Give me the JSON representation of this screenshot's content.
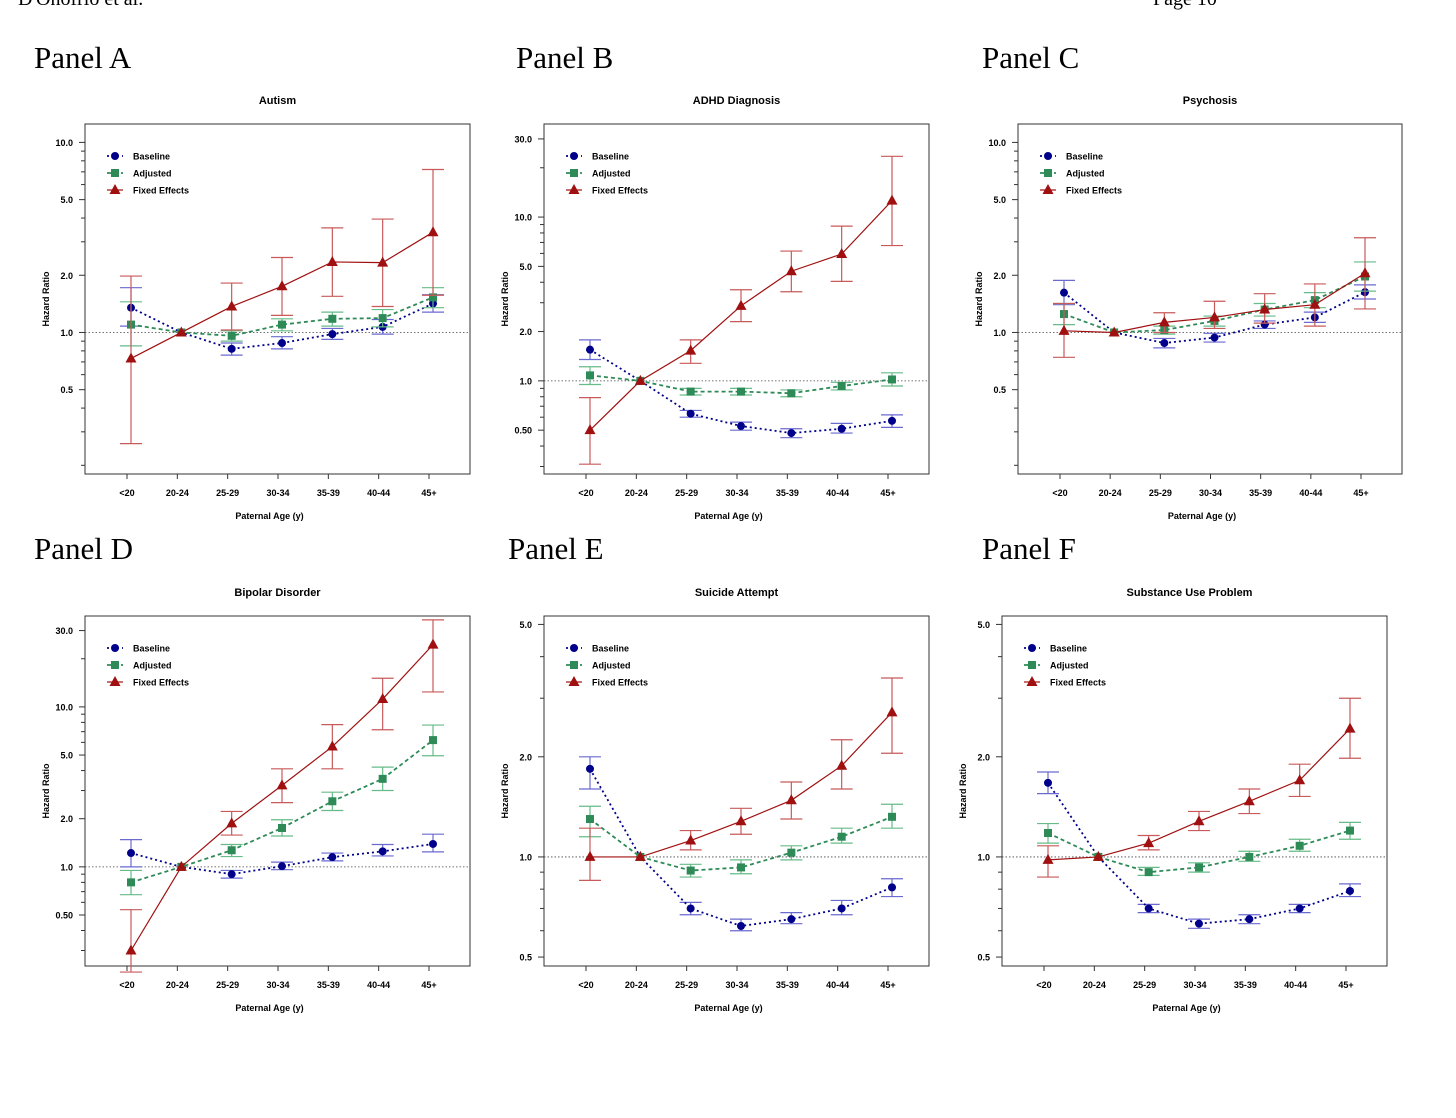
{
  "header": {
    "left": "D'Onofrio et al.",
    "right": "Page 10"
  },
  "panels": [
    {
      "label": "Panel A"
    },
    {
      "label": "Panel B"
    },
    {
      "label": "Panel C"
    },
    {
      "label": "Panel D"
    },
    {
      "label": "Panel E"
    },
    {
      "label": "Panel F"
    }
  ],
  "colors": {
    "baseline": "#00008b",
    "adjusted": "#2e8b57",
    "fixed_effects": "#a01010",
    "baseline_ci": "#6a6ad0",
    "adjusted_ci": "#66bb88",
    "fixed_effects_ci": "#c85a5a"
  },
  "chart_data": [
    {
      "type": "line",
      "title": "Autism",
      "xlabel": "Paternal Age (y)",
      "ylabel": "Hazard Ratio",
      "y_scale": "log",
      "ylim": [
        0.18,
        12.5
      ],
      "yticks": [
        "10.0",
        "5.0",
        "2.0",
        "1.0",
        "0.5"
      ],
      "reference_line": 1.0,
      "legend_position": "top-left",
      "categories": [
        "<20",
        "20-24",
        "25-29",
        "30-34",
        "35-39",
        "40-44",
        "45+"
      ],
      "series": [
        {
          "name": "Baseline",
          "marker": "circle",
          "values": [
            1.35,
            1.0,
            0.82,
            0.88,
            0.98,
            1.07,
            1.42
          ],
          "lower": [
            1.08,
            1.0,
            0.76,
            0.82,
            0.92,
            0.98,
            1.28
          ],
          "upper": [
            1.72,
            1.0,
            0.88,
            0.95,
            1.05,
            1.17,
            1.58
          ]
        },
        {
          "name": "Adjusted",
          "marker": "square",
          "values": [
            1.1,
            1.0,
            0.96,
            1.1,
            1.18,
            1.19,
            1.53
          ],
          "lower": [
            0.85,
            1.0,
            0.9,
            1.02,
            1.08,
            1.07,
            1.35
          ],
          "upper": [
            1.45,
            1.0,
            1.02,
            1.18,
            1.28,
            1.32,
            1.72
          ]
        },
        {
          "name": "Fixed Effects",
          "marker": "triangle",
          "values": [
            0.73,
            1.0,
            1.37,
            1.75,
            2.35,
            2.33,
            3.37
          ],
          "lower": [
            0.26,
            1.0,
            1.03,
            1.23,
            1.55,
            1.37,
            1.57
          ],
          "upper": [
            1.98,
            1.0,
            1.82,
            2.48,
            3.55,
            3.95,
            7.2
          ]
        }
      ]
    },
    {
      "type": "line",
      "title": "ADHD Diagnosis",
      "xlabel": "Paternal Age (y)",
      "ylabel": "Hazard Ratio",
      "y_scale": "log",
      "ylim": [
        0.27,
        37
      ],
      "yticks": [
        "30.0",
        "10.0",
        "5.0",
        "2.0",
        "1.0",
        "0.50"
      ],
      "reference_line": 1.0,
      "legend_position": "top-left",
      "categories": [
        "<20",
        "20-24",
        "25-29",
        "30-34",
        "35-39",
        "40-44",
        "45+"
      ],
      "series": [
        {
          "name": "Baseline",
          "marker": "circle",
          "values": [
            1.55,
            1.0,
            0.63,
            0.53,
            0.48,
            0.51,
            0.57
          ],
          "lower": [
            1.35,
            1.0,
            0.6,
            0.5,
            0.45,
            0.48,
            0.52
          ],
          "upper": [
            1.78,
            1.0,
            0.66,
            0.56,
            0.51,
            0.55,
            0.62
          ]
        },
        {
          "name": "Adjusted",
          "marker": "square",
          "values": [
            1.08,
            1.0,
            0.86,
            0.86,
            0.84,
            0.93,
            1.02
          ],
          "lower": [
            0.95,
            1.0,
            0.82,
            0.82,
            0.8,
            0.88,
            0.93
          ],
          "upper": [
            1.22,
            1.0,
            0.9,
            0.9,
            0.88,
            0.98,
            1.12
          ]
        },
        {
          "name": "Fixed Effects",
          "marker": "triangle",
          "values": [
            0.5,
            1.0,
            1.53,
            2.87,
            4.67,
            5.95,
            12.6
          ],
          "lower": [
            0.31,
            1.0,
            1.28,
            2.3,
            3.5,
            4.05,
            6.7
          ],
          "upper": [
            0.79,
            1.0,
            1.78,
            3.6,
            6.2,
            8.8,
            23.5
          ]
        }
      ]
    },
    {
      "type": "line",
      "title": "Psychosis",
      "xlabel": "Paternal Age (y)",
      "ylabel": "Hazard Ratio",
      "y_scale": "log",
      "ylim": [
        0.18,
        12.5
      ],
      "yticks": [
        "10.0",
        "5.0",
        "2.0",
        "1.0",
        "0.5"
      ],
      "reference_line": 1.0,
      "legend_position": "top-left",
      "categories": [
        "<20",
        "20-24",
        "25-29",
        "30-34",
        "35-39",
        "40-44",
        "45+"
      ],
      "series": [
        {
          "name": "Baseline",
          "marker": "circle",
          "values": [
            1.62,
            1.0,
            0.88,
            0.94,
            1.1,
            1.2,
            1.63
          ],
          "lower": [
            1.4,
            1.0,
            0.83,
            0.89,
            1.05,
            1.13,
            1.5
          ],
          "upper": [
            1.88,
            1.0,
            0.93,
            0.99,
            1.15,
            1.28,
            1.78
          ]
        },
        {
          "name": "Adjusted",
          "marker": "square",
          "values": [
            1.25,
            1.0,
            1.03,
            1.15,
            1.32,
            1.48,
            1.97
          ],
          "lower": [
            1.1,
            1.0,
            0.98,
            1.08,
            1.22,
            1.35,
            1.65
          ],
          "upper": [
            1.42,
            1.0,
            1.08,
            1.22,
            1.42,
            1.62,
            2.35
          ]
        },
        {
          "name": "Fixed Effects",
          "marker": "triangle",
          "values": [
            1.02,
            1.0,
            1.13,
            1.2,
            1.32,
            1.4,
            2.05
          ],
          "lower": [
            0.74,
            1.0,
            1.0,
            1.05,
            1.12,
            1.08,
            1.33
          ],
          "upper": [
            1.42,
            1.0,
            1.27,
            1.46,
            1.6,
            1.8,
            3.15
          ]
        }
      ]
    },
    {
      "type": "line",
      "title": "Bipolar Disorder",
      "xlabel": "Paternal Age (y)",
      "ylabel": "Hazard Ratio",
      "y_scale": "log",
      "ylim": [
        0.24,
        37
      ],
      "yticks": [
        "30.0",
        "10.0",
        "5.0",
        "2.0",
        "1.0",
        "0.50"
      ],
      "reference_line": 1.0,
      "legend_position": "top-left",
      "categories": [
        "<20",
        "20-24",
        "25-29",
        "30-34",
        "35-39",
        "40-44",
        "45+"
      ],
      "series": [
        {
          "name": "Baseline",
          "marker": "circle",
          "values": [
            1.22,
            1.0,
            0.9,
            1.01,
            1.15,
            1.25,
            1.39
          ],
          "lower": [
            1.0,
            1.0,
            0.85,
            0.96,
            1.09,
            1.17,
            1.24
          ],
          "upper": [
            1.48,
            1.0,
            0.95,
            1.07,
            1.22,
            1.38,
            1.6
          ]
        },
        {
          "name": "Adjusted",
          "marker": "square",
          "values": [
            0.8,
            1.0,
            1.27,
            1.75,
            2.57,
            3.55,
            6.2
          ],
          "lower": [
            0.67,
            1.0,
            1.16,
            1.56,
            2.25,
            3.0,
            4.95
          ],
          "upper": [
            0.95,
            1.0,
            1.38,
            1.97,
            2.93,
            4.2,
            7.7
          ]
        },
        {
          "name": "Fixed Effects",
          "marker": "triangle",
          "values": [
            0.3,
            1.0,
            1.87,
            3.23,
            5.65,
            11.2,
            24.5
          ],
          "lower": [
            0.22,
            1.0,
            1.58,
            2.52,
            4.1,
            7.2,
            12.4
          ],
          "upper": [
            0.54,
            1.0,
            2.22,
            4.1,
            7.75,
            15.1,
            35.0
          ]
        }
      ]
    },
    {
      "type": "line",
      "title": "Suicide Attempt",
      "xlabel": "Paternal Age (y)",
      "ylabel": "Hazard Ratio",
      "y_scale": "log",
      "ylim": [
        0.47,
        5.3
      ],
      "yticks": [
        "5.0",
        "2.0",
        "1.0",
        "0.5"
      ],
      "reference_line": 1.0,
      "legend_position": "top-left",
      "categories": [
        "<20",
        "20-24",
        "25-29",
        "30-34",
        "35-39",
        "40-44",
        "45+"
      ],
      "series": [
        {
          "name": "Baseline",
          "marker": "circle",
          "values": [
            1.84,
            1.0,
            0.7,
            0.62,
            0.65,
            0.7,
            0.81
          ],
          "lower": [
            1.6,
            1.0,
            0.67,
            0.6,
            0.63,
            0.67,
            0.76
          ],
          "upper": [
            2.0,
            1.0,
            0.73,
            0.65,
            0.68,
            0.74,
            0.86
          ]
        },
        {
          "name": "Adjusted",
          "marker": "square",
          "values": [
            1.3,
            1.0,
            0.91,
            0.93,
            1.03,
            1.15,
            1.32
          ],
          "lower": [
            1.15,
            1.0,
            0.87,
            0.89,
            0.98,
            1.1,
            1.22
          ],
          "upper": [
            1.42,
            1.0,
            0.95,
            0.98,
            1.08,
            1.22,
            1.44
          ]
        },
        {
          "name": "Fixed Effects",
          "marker": "triangle",
          "values": [
            1.0,
            1.0,
            1.12,
            1.28,
            1.48,
            1.88,
            2.72
          ],
          "lower": [
            0.85,
            1.0,
            1.05,
            1.17,
            1.3,
            1.6,
            2.05
          ],
          "upper": [
            1.22,
            1.0,
            1.2,
            1.4,
            1.68,
            2.25,
            3.45
          ]
        }
      ]
    },
    {
      "type": "line",
      "title": "Substance Use Problem",
      "xlabel": "Paternal Age (y)",
      "ylabel": "Hazard Ratio",
      "y_scale": "log",
      "ylim": [
        0.47,
        5.3
      ],
      "yticks": [
        "5.0",
        "2.0",
        "1.0",
        "0.5"
      ],
      "reference_line": 1.0,
      "legend_position": "top-left",
      "categories": [
        "<20",
        "20-24",
        "25-29",
        "30-34",
        "35-39",
        "40-44",
        "45+"
      ],
      "series": [
        {
          "name": "Baseline",
          "marker": "circle",
          "values": [
            1.67,
            1.0,
            0.7,
            0.63,
            0.65,
            0.7,
            0.79
          ],
          "lower": [
            1.55,
            1.0,
            0.68,
            0.61,
            0.63,
            0.68,
            0.76
          ],
          "upper": [
            1.8,
            1.0,
            0.72,
            0.65,
            0.67,
            0.72,
            0.83
          ]
        },
        {
          "name": "Adjusted",
          "marker": "square",
          "values": [
            1.18,
            1.0,
            0.9,
            0.93,
            1.0,
            1.08,
            1.2
          ],
          "lower": [
            1.1,
            1.0,
            0.88,
            0.9,
            0.97,
            1.04,
            1.13
          ],
          "upper": [
            1.26,
            1.0,
            0.93,
            0.96,
            1.04,
            1.13,
            1.27
          ]
        },
        {
          "name": "Fixed Effects",
          "marker": "triangle",
          "values": [
            0.98,
            1.0,
            1.1,
            1.28,
            1.47,
            1.7,
            2.43
          ],
          "lower": [
            0.87,
            1.0,
            1.05,
            1.2,
            1.35,
            1.52,
            1.98
          ],
          "upper": [
            1.08,
            1.0,
            1.16,
            1.37,
            1.6,
            1.9,
            3.0
          ]
        }
      ]
    }
  ]
}
